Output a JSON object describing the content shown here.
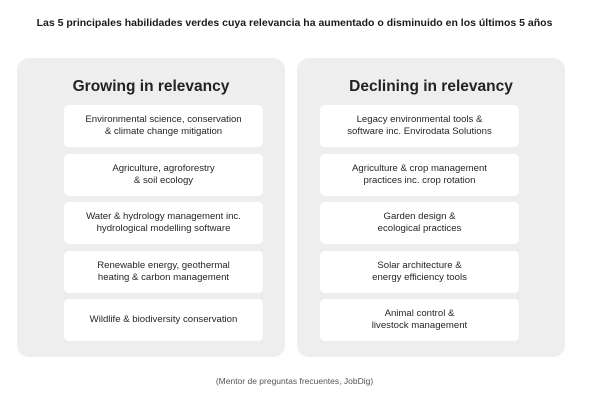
{
  "title": "Las 5 principales habilidades verdes cuya relevancia ha aumentado o disminuido en los últimos 5 años",
  "growing": {
    "heading": "Growing in relevancy",
    "items": [
      {
        "label": "Environmental science, conservation\n& climate change mitigation"
      },
      {
        "label": "Agriculture, agroforestry\n& soil ecology"
      },
      {
        "label": "Water & hydrology management inc.\nhydrological modelling software"
      },
      {
        "label": "Renewable energy, geothermal\nheating & carbon management"
      },
      {
        "label": "Wildlife & biodiversity conservation"
      }
    ]
  },
  "declining": {
    "heading": "Declining in relevancy",
    "items": [
      {
        "label": "Legacy environmental tools &\nsoftware inc. Envirodata Solutions"
      },
      {
        "label": "Agriculture & crop management\npractices inc. crop rotation"
      },
      {
        "label": "Garden design &\necological practices"
      },
      {
        "label": "Solar architecture &\nenergy efficiency tools"
      },
      {
        "label": "Animal control &\nlivestock management"
      }
    ]
  },
  "caption": "(Mentor de preguntas frecuentes, JobDig)",
  "colors": {
    "panel_bg": "#eeeeee",
    "card_bg": "#ffffff",
    "arrow_start": "#f6d21a",
    "arrow_end": "#e8431f"
  }
}
